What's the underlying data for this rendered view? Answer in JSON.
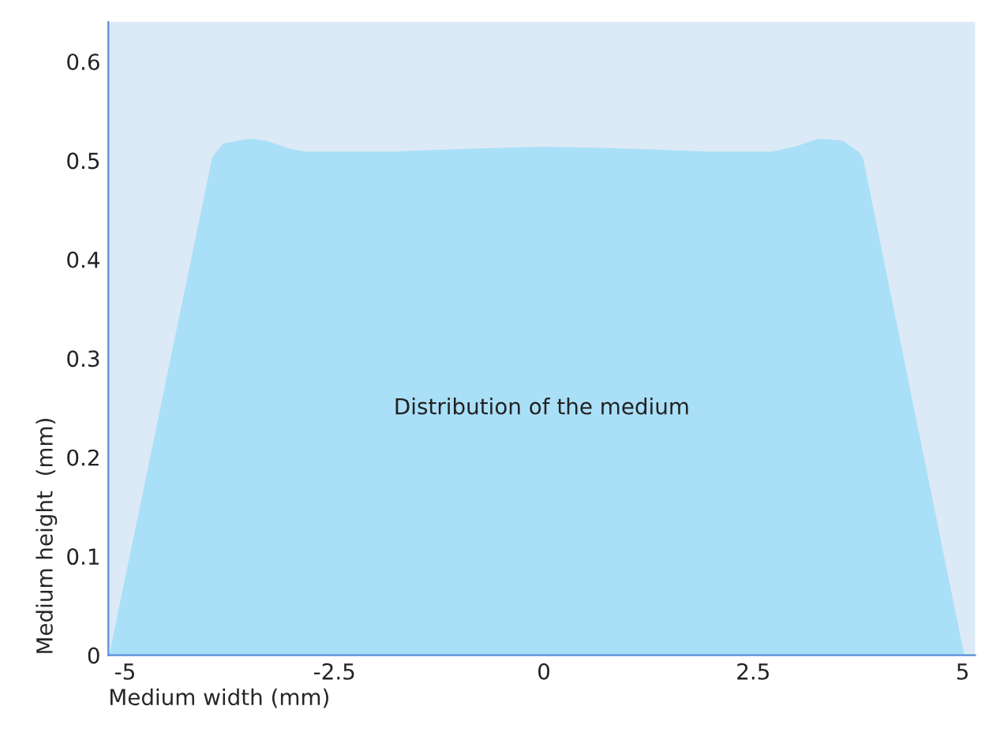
{
  "chart_data": {
    "type": "area",
    "xlabel": "Medium width (mm)",
    "ylabel": "Medium height  (mm)",
    "annotations": [
      "Distribution of the medium"
    ],
    "x": [
      -5.19,
      -3.96,
      -3.83,
      -3.51,
      -3.32,
      -3.04,
      -2.85,
      -1.81,
      -0.87,
      0,
      1.02,
      1.96,
      2.72,
      3.0,
      3.28,
      3.57,
      3.77,
      3.81,
      5.02
    ],
    "series": [
      {
        "color": "#aadff8",
        "values": [
          0,
          0.503,
          0.517,
          0.522,
          0.52,
          0.512,
          0.509,
          0.509,
          0.512,
          0.514,
          0.512,
          0.509,
          0.509,
          0.514,
          0.522,
          0.52,
          0.508,
          0.503,
          0
        ]
      }
    ],
    "xlim": [
      -5.2,
      5.15
    ],
    "ylim": [
      0,
      0.64
    ],
    "xticks": [
      -5,
      -2.5,
      0,
      2.5,
      5
    ],
    "yticks": [
      0,
      0.1,
      0.2,
      0.3,
      0.4,
      0.5,
      0.6
    ],
    "grid": false,
    "legend": false
  }
}
